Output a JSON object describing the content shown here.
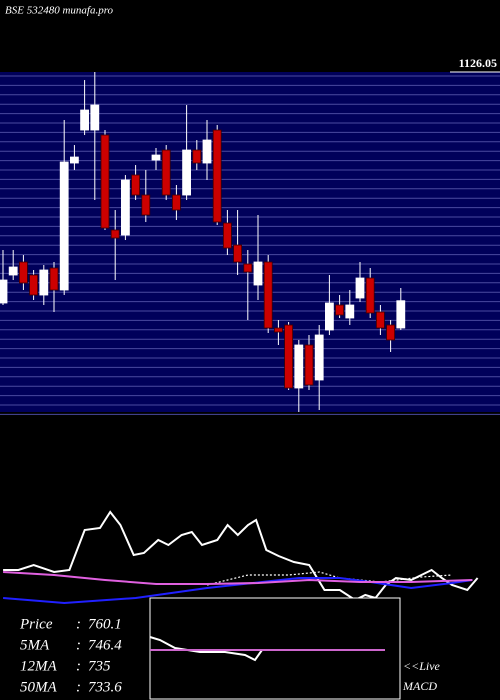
{
  "chart_data": [
    {
      "type": "candlestick",
      "title": "BSE 532480 munafa.pro",
      "categories": [
        null,
        null,
        null,
        null,
        null,
        null,
        null,
        null,
        null,
        null,
        null,
        null,
        null,
        null,
        null,
        null,
        null,
        null,
        null,
        null,
        null,
        null,
        null,
        null,
        null,
        null,
        null,
        null,
        null,
        null,
        null,
        null,
        null,
        null,
        null,
        null,
        null,
        null,
        null,
        null
      ],
      "open": [
        756.4,
        801.2,
        822,
        801.2,
        769.2,
        812.4,
        777.2,
        980.4,
        1033.2,
        1033.2,
        1025.2,
        873.2,
        865.2,
        961.2,
        929.2,
        985.2,
        1001.2,
        929.2,
        929.2,
        1001.2,
        980.4,
        1033.2,
        884.4,
        849.2,
        818.8,
        785.2,
        822,
        716.4,
        721.2,
        620.4,
        689.2,
        633.2,
        713.2,
        753.2,
        732.4,
        764.4,
        796.4,
        742,
        721.2,
        716.4
      ],
      "high": [
        841.2,
        841.2,
        833.2,
        809.2,
        817.2,
        822,
        1049.2,
        1009.2,
        1113.2,
        1126,
        1033.2,
        905.2,
        961.2,
        977.2,
        969.2,
        1004.4,
        1009.2,
        945.2,
        1073.2,
        1017.2,
        1049.2,
        1041.2,
        905.2,
        905.2,
        841.2,
        897.2,
        833.2,
        729.2,
        726,
        697.2,
        705.2,
        721.2,
        801.2,
        769.2,
        777.2,
        822,
        812.4,
        753.2,
        729.2,
        780.4
      ],
      "low": [
        753.2,
        793.2,
        777.2,
        761.2,
        753.2,
        742,
        769.2,
        969.2,
        1025.2,
        921.2,
        873.2,
        793.2,
        857.2,
        921.2,
        886,
        969.2,
        921.2,
        889.2,
        921.2,
        969.2,
        953.2,
        881.2,
        833.2,
        801.2,
        729.2,
        761.2,
        708.4,
        689.2,
        617.2,
        582,
        617.2,
        585.2,
        705.2,
        732.4,
        721.2,
        758,
        732.4,
        705.2,
        678,
        713.2
      ],
      "close": [
        793.2,
        814,
        788.4,
        769.2,
        809.2,
        777.2,
        982,
        990,
        1065.2,
        1073.2,
        876.4,
        860.4,
        953.2,
        929.2,
        897.2,
        993.2,
        929.2,
        905.2,
        1001.2,
        980.4,
        1017.2,
        886,
        844.4,
        822,
        806,
        822,
        716.4,
        710,
        620.4,
        689.2,
        625.2,
        705.2,
        756.4,
        737.2,
        753.2,
        796.4,
        740.4,
        716.4,
        697.2,
        760.1
      ],
      "up_color": "#ffffff",
      "down_color": "#cc0000",
      "background": "#00005a",
      "ylim": [
        582,
        1126.05
      ],
      "yticks": [
        1126.05
      ],
      "grid": true
    },
    {
      "type": "line",
      "xlim": [
        -0.3,
        48.7
      ],
      "ylim": [
        150,
        1590
      ],
      "series": [
        {
          "color": "#ffffff",
          "style": "solid",
          "x": [
            0,
            1.5,
            3,
            5,
            6.5,
            8,
            9.5,
            10.5,
            11.5,
            12.8,
            13.8,
            15.2,
            16.2,
            17.5,
            18.5,
            19.5,
            21,
            22,
            23,
            24,
            24.8,
            25.8,
            27,
            28.5,
            30,
            31.5,
            33,
            34.5,
            35.5,
            36.5,
            37.5,
            38.5,
            40,
            41,
            42,
            43,
            44,
            45.5,
            46.5
          ],
          "values": [
            800,
            800,
            825,
            790,
            800,
            1000,
            1010,
            1090,
            1025,
            875,
            885,
            950,
            925,
            975,
            990,
            925,
            950,
            1025,
            975,
            1025,
            1050,
            900,
            870,
            840,
            825,
            700,
            700,
            650,
            675,
            660,
            725,
            760,
            750,
            775,
            800,
            760,
            725,
            700,
            760
          ]
        },
        {
          "color": "#ffffff",
          "style": "dotted",
          "x": [
            20,
            24,
            28,
            31,
            33,
            37,
            41,
            44
          ],
          "values": [
            725,
            775,
            775,
            790,
            760,
            740,
            765,
            775
          ]
        },
        {
          "color": "#2020ff",
          "style": "solid",
          "x": [
            0,
            6,
            13,
            20,
            29,
            33,
            36,
            40,
            44,
            46
          ],
          "values": [
            660,
            635,
            660,
            710,
            760,
            760,
            740,
            710,
            735,
            750
          ]
        },
        {
          "color": "#e060e0",
          "style": "solid",
          "x": [
            0,
            5,
            10,
            15,
            20,
            25,
            30,
            35,
            40,
            46
          ],
          "values": [
            790,
            775,
            750,
            730,
            730,
            735,
            750,
            740,
            740,
            750
          ]
        }
      ],
      "legend": [
        {
          "name": "Price",
          "sep": ":",
          "value": 760.1
        },
        {
          "name": "5MA",
          "sep": ":",
          "value": 746.4
        },
        {
          "name": "12MA",
          "sep": ":",
          "value": 735
        },
        {
          "name": "50MA",
          "sep": ":",
          "value": 733.6
        }
      ]
    },
    {
      "type": "line",
      "title": "MACD",
      "label": "<<Live",
      "xlim": [
        0,
        25
      ],
      "ylim": [
        -5,
        5.2
      ],
      "series": [
        {
          "color": "#ffffff",
          "style": "solid",
          "x": [
            0,
            1,
            2.5,
            5,
            7.5,
            9.5,
            10.5,
            11.2,
            13,
            23.5
          ],
          "values": [
            1.3,
            1.0,
            0.2,
            -0.2,
            -0.2,
            -0.5,
            -1.0,
            0,
            0,
            0
          ]
        },
        {
          "color": "#cc66cc",
          "style": "solid",
          "x": [
            0,
            23.5
          ],
          "values": [
            0,
            0
          ]
        }
      ]
    }
  ]
}
